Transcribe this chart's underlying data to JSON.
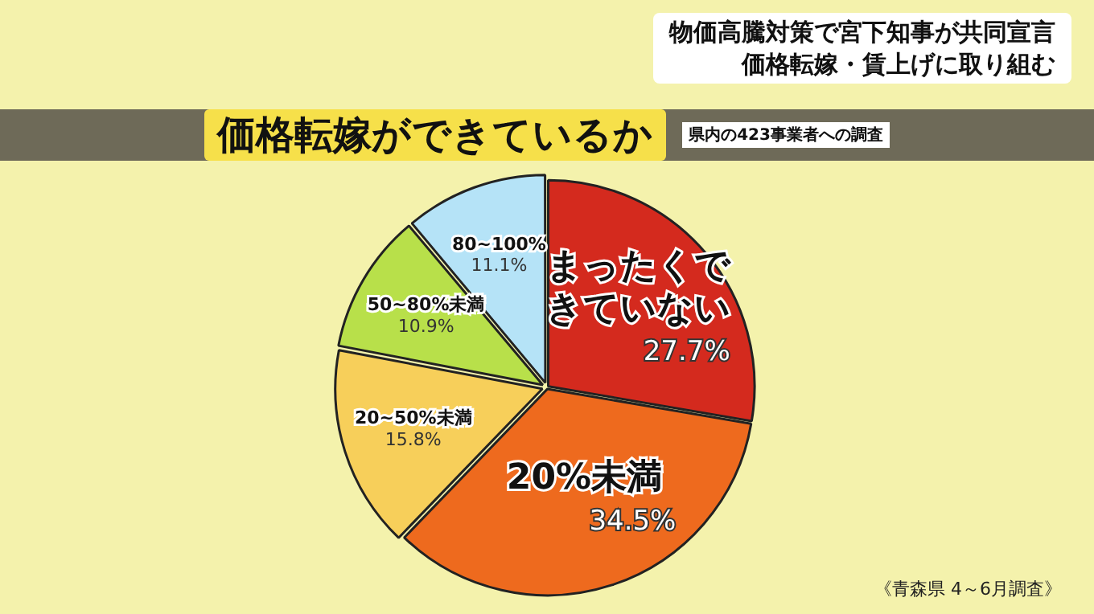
{
  "chart_data": {
    "type": "pie",
    "title": "価格転嫁ができているか",
    "subtitle": "県内の423事業者への調査",
    "categories": [
      "まったくできていない",
      "20%未満",
      "20~50%未満",
      "50~80%未満",
      "80~100%"
    ],
    "values": [
      27.7,
      34.5,
      15.8,
      10.9,
      11.1
    ],
    "value_labels": [
      "27.7%",
      "34.5%",
      "15.8%",
      "10.9%",
      "11.1%"
    ],
    "colors": [
      "#d42a1e",
      "#ee6a1e",
      "#f7cf5a",
      "#b8e04a",
      "#b5e3f7"
    ],
    "annotations": [
      "物価高騰対策で宮下知事が共同宣言",
      "価格転嫁・賃上げに取り組む",
      "《青森県 4～6月調査》"
    ]
  }
}
